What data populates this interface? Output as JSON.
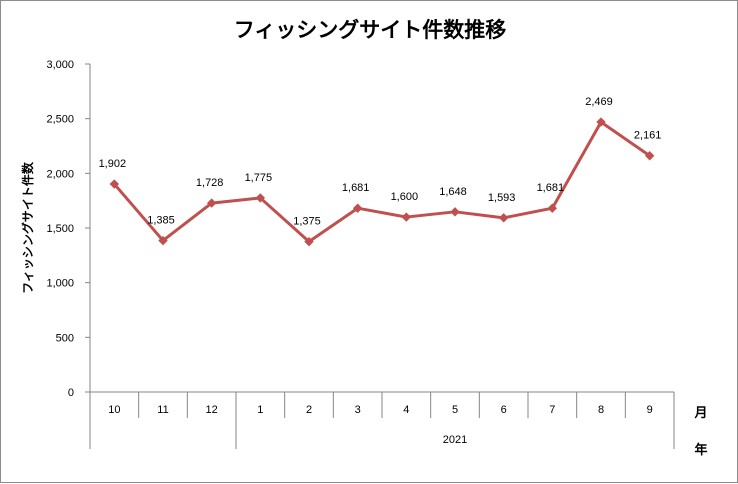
{
  "chart_data": {
    "type": "line",
    "title": "フィッシングサイト件数推移",
    "ylabel": "フィッシングサイト件数",
    "x_unit_month": "月",
    "x_unit_year": "年",
    "categories": [
      "10",
      "11",
      "12",
      "1",
      "2",
      "3",
      "4",
      "5",
      "6",
      "7",
      "8",
      "9"
    ],
    "year_groups": [
      {
        "label": "",
        "span": 3
      },
      {
        "label": "2021",
        "span": 9
      }
    ],
    "series": [
      {
        "values": [
          1902,
          1385,
          1728,
          1775,
          1375,
          1681,
          1600,
          1648,
          1593,
          1681,
          2469,
          2161
        ],
        "data_labels": [
          "1,902",
          "1,385",
          "1,728",
          "1,775",
          "1,375",
          "1,681",
          "1,600",
          "1,648",
          "1,593",
          "1,681",
          "2,469",
          "2,161"
        ],
        "color": "#c0504d"
      }
    ],
    "ylim": [
      0,
      3000
    ],
    "yticks": [
      0,
      500,
      1000,
      1500,
      2000,
      2500,
      3000
    ],
    "ytick_labels": [
      "0",
      "500",
      "1,000",
      "1,500",
      "2,000",
      "2,500",
      "3,000"
    ],
    "grid": false,
    "legend": "none"
  }
}
